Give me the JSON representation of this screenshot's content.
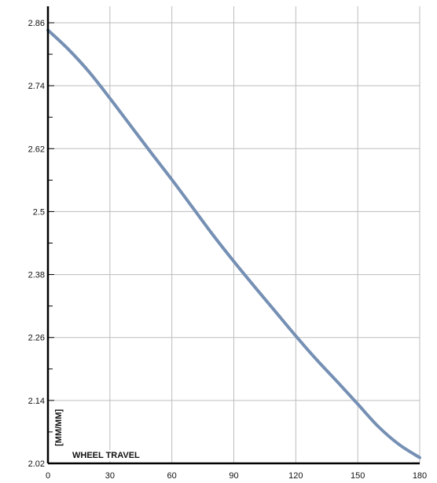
{
  "chart_data": {
    "type": "line",
    "title": "",
    "xlabel": "WHEEL TRAVEL",
    "ylabel": "[MM/MM]",
    "xlim": [
      0,
      180
    ],
    "ylim": [
      2.02,
      2.86
    ],
    "x_ticks": [
      0,
      30,
      60,
      90,
      120,
      150,
      180
    ],
    "x_tick_labels": [
      "0",
      "30",
      "60",
      "90",
      "120",
      "150",
      "180"
    ],
    "y_ticks": [
      2.02,
      2.14,
      2.26,
      2.38,
      2.5,
      2.62,
      2.74,
      2.86
    ],
    "y_tick_labels": [
      "2.02",
      "2.14",
      "2.26",
      "2.38",
      "2.5",
      "2.62",
      "2.74",
      "2.86"
    ],
    "grid": true,
    "legend": "none",
    "series": [
      {
        "color": "#7590b4",
        "x": [
          0,
          10,
          20,
          30,
          40,
          50,
          60,
          70,
          80,
          90,
          100,
          110,
          120,
          130,
          140,
          150,
          160,
          170,
          180
        ],
        "y": [
          2.846,
          2.809,
          2.766,
          2.716,
          2.664,
          2.612,
          2.561,
          2.508,
          2.455,
          2.405,
          2.357,
          2.31,
          2.263,
          2.218,
          2.176,
          2.133,
          2.09,
          2.056,
          2.031
        ]
      }
    ]
  }
}
